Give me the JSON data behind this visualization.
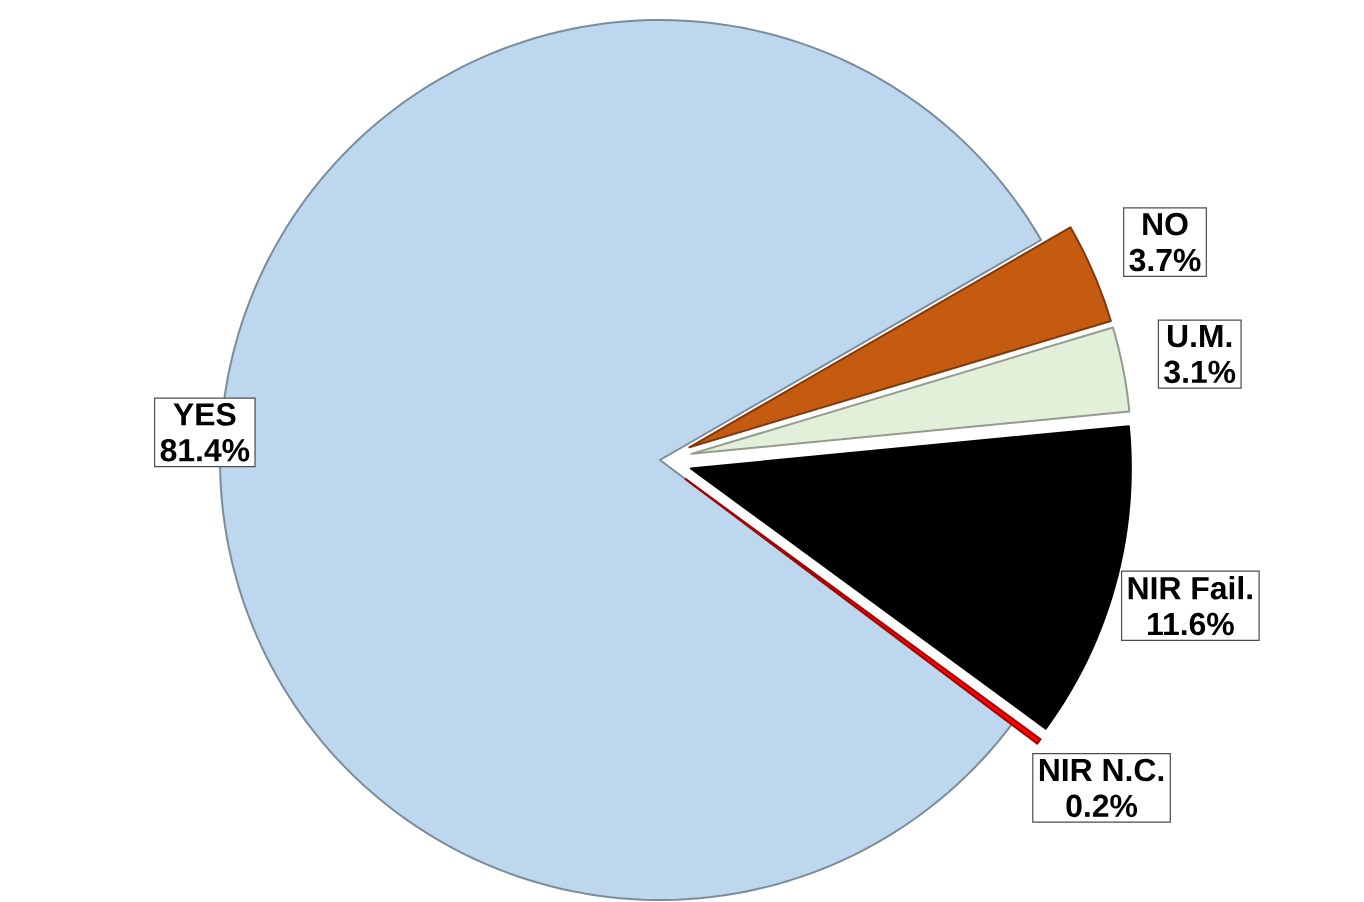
{
  "chart_data": {
    "type": "pie",
    "categories": [
      "YES",
      "NIR N.C.",
      "NIR Fail.",
      "U.M.",
      "NO"
    ],
    "values": [
      81.4,
      0.2,
      11.6,
      3.1,
      3.7
    ],
    "colors": [
      "#bdd7ee",
      "#ff0000",
      "#000000",
      "#e2f0d9",
      "#c55a11"
    ],
    "value_labels": [
      "81.4%",
      "0.2%",
      "11.6%",
      "3.1%",
      "3.7%"
    ]
  }
}
